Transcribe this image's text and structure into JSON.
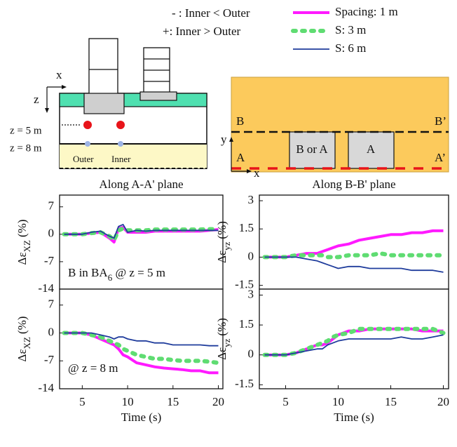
{
  "notes": [
    "- : Inner < Outer",
    "+: Inner > Outer"
  ],
  "diagrams": {
    "section": {
      "x_axis": "x",
      "z_axis": "z",
      "depth_1": "z = 5 m",
      "depth_2": "z = 8 m",
      "outer": "Outer",
      "inner": "Inner"
    },
    "plan": {
      "b_left": "B",
      "b_right": "B’",
      "a_left": "A",
      "a_right": "A’",
      "y_axis": "y",
      "x_axis": "x",
      "box_1": "B or A",
      "box_2": "A"
    }
  },
  "chart_data": [
    {
      "type": "line",
      "title": "Along A-A' plane",
      "ylabel_parts": [
        "Δε",
        "XZ",
        "(%)"
      ],
      "annotation_parts": [
        "B in BA",
        "6",
        " @ z = 5 m"
      ],
      "x": [
        3,
        4,
        5,
        6,
        7,
        8,
        8.5,
        9,
        9.5,
        10,
        11,
        12,
        13,
        14,
        15,
        16,
        17,
        18,
        19,
        20
      ],
      "xlim": [
        2.5,
        20.5
      ],
      "ylim": [
        -14,
        10
      ],
      "yticks": [
        7,
        0,
        -7,
        -14
      ],
      "series": [
        {
          "name": "Spacing: 1 m",
          "color": "#ff1aff",
          "values": [
            0,
            0,
            0,
            0.3,
            0.5,
            -1,
            -2,
            1.5,
            1.8,
            0.5,
            0.5,
            0.5,
            0.8,
            0.8,
            0.8,
            0.8,
            0.8,
            0.8,
            1,
            1.2
          ]
        },
        {
          "name": "S: 3 m",
          "color": "#5fdc72",
          "values": [
            0,
            0,
            0,
            0.3,
            0.5,
            -0.5,
            -1.5,
            1,
            1.5,
            1,
            1,
            1,
            1.2,
            1.2,
            1.2,
            1.2,
            1.2,
            1.2,
            1.3,
            1.3
          ]
        },
        {
          "name": "S: 6 m",
          "color": "#1f3c9c",
          "values": [
            0,
            0,
            0,
            0.5,
            0.8,
            -0.5,
            -1,
            2,
            2.5,
            0.5,
            1,
            0.8,
            1,
            1,
            1,
            1,
            1,
            1,
            1,
            1
          ]
        }
      ]
    },
    {
      "type": "line",
      "ylabel_parts": [
        "Δε",
        "XZ",
        "(%)"
      ],
      "annotation_parts": [
        "@ z = 8 m"
      ],
      "xlabel": "Time (s)",
      "x": [
        3,
        4,
        5,
        6,
        7,
        8,
        8.5,
        9,
        9.5,
        10,
        11,
        12,
        13,
        14,
        15,
        16,
        17,
        18,
        19,
        20
      ],
      "xlim": [
        2.5,
        20.5
      ],
      "ylim": [
        -14,
        11
      ],
      "yticks": [
        7,
        0,
        -7,
        -14
      ],
      "xticks": [
        5,
        10,
        15,
        20
      ],
      "series": [
        {
          "color": "#ff1aff",
          "values": [
            0,
            0,
            0,
            -0.5,
            -1.5,
            -2.5,
            -3,
            -4,
            -5.5,
            -6,
            -7.5,
            -8,
            -8.5,
            -8.8,
            -9,
            -9.2,
            -9.5,
            -9.5,
            -10,
            -10
          ]
        },
        {
          "color": "#5fdc72",
          "values": [
            0,
            0,
            0,
            -0.5,
            -1,
            -2,
            -2.5,
            -3,
            -4,
            -4.5,
            -5.5,
            -6,
            -6.5,
            -6.5,
            -6.8,
            -7,
            -7,
            -7,
            -7.2,
            -7.5
          ]
        },
        {
          "color": "#1f3c9c",
          "values": [
            0,
            0,
            0,
            0,
            -0.5,
            -1,
            -1.5,
            -1,
            -1,
            -1.5,
            -2,
            -2,
            -2.5,
            -2.5,
            -3,
            -3,
            -3,
            -3,
            -3.2,
            -3.2
          ]
        }
      ]
    },
    {
      "type": "line",
      "title": "Along B-B' plane",
      "ylabel_parts": [
        "Δε",
        "yz",
        "(%)"
      ],
      "x": [
        3,
        4,
        5,
        6,
        7,
        8,
        8.5,
        9,
        9.5,
        10,
        11,
        12,
        13,
        14,
        15,
        16,
        17,
        18,
        19,
        20
      ],
      "xlim": [
        2.5,
        20.5
      ],
      "ylim": [
        -1.7,
        3.3
      ],
      "yticks": [
        3,
        1.5,
        0,
        -1.5
      ],
      "series": [
        {
          "color": "#ff1aff",
          "values": [
            0,
            0,
            0,
            0.1,
            0.2,
            0.2,
            0.3,
            0.4,
            0.5,
            0.6,
            0.7,
            0.9,
            1,
            1.1,
            1.2,
            1.2,
            1.3,
            1.3,
            1.4,
            1.4
          ]
        },
        {
          "color": "#5fdc72",
          "values": [
            0,
            0,
            0,
            0.1,
            0.1,
            0.1,
            0.1,
            0,
            0,
            0,
            0.1,
            0.1,
            0.1,
            0.2,
            0.1,
            0.1,
            0.1,
            0.1,
            0.1,
            0.1
          ]
        },
        {
          "color": "#1f3c9c",
          "values": [
            0,
            0,
            0,
            0,
            -0.1,
            -0.2,
            -0.3,
            -0.4,
            -0.5,
            -0.6,
            -0.5,
            -0.5,
            -0.6,
            -0.6,
            -0.6,
            -0.6,
            -0.7,
            -0.7,
            -0.7,
            -0.8
          ]
        }
      ]
    },
    {
      "type": "line",
      "ylabel_parts": [
        "Δε",
        "yz",
        "(%)"
      ],
      "xlabel": "Time (s)",
      "x": [
        3,
        4,
        5,
        6,
        7,
        8,
        8.5,
        9,
        9.5,
        10,
        11,
        12,
        13,
        14,
        15,
        16,
        17,
        18,
        19,
        20
      ],
      "xlim": [
        2.5,
        20.5
      ],
      "ylim": [
        -1.7,
        3.3
      ],
      "yticks": [
        3,
        1.5,
        0,
        -1.5
      ],
      "xticks": [
        5,
        10,
        15,
        20
      ],
      "series": [
        {
          "color": "#ff1aff",
          "values": [
            0,
            0,
            0,
            0.1,
            0.3,
            0.5,
            0.5,
            0.6,
            0.8,
            1,
            1.2,
            1.2,
            1.3,
            1.3,
            1.3,
            1.3,
            1.3,
            1.2,
            1.2,
            1.2
          ]
        },
        {
          "color": "#5fdc72",
          "values": [
            0,
            0,
            0,
            0.1,
            0.3,
            0.5,
            0.6,
            0.7,
            0.9,
            1,
            1.1,
            1.3,
            1.3,
            1.3,
            1.3,
            1.3,
            1.3,
            1.3,
            1.3,
            1.1
          ]
        },
        {
          "color": "#1f3c9c",
          "values": [
            0,
            0,
            0,
            0.1,
            0.2,
            0.3,
            0.3,
            0.5,
            0.6,
            0.7,
            0.8,
            0.8,
            0.8,
            0.8,
            0.8,
            0.9,
            0.8,
            0.8,
            0.9,
            1.0
          ]
        }
      ]
    }
  ]
}
